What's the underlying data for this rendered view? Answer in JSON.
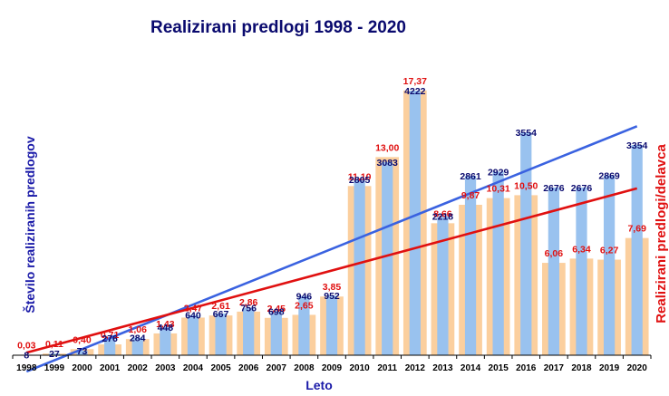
{
  "chart_data": {
    "type": "bar",
    "title": "Realizirani  predlogi 1998 -  2020",
    "xlabel": "Leto",
    "ylabel": "Število realiziranih predlogov",
    "y2label": "Realizirani predlogi/delavca",
    "categories": [
      "1998",
      "1999",
      "2000",
      "2001",
      "2002",
      "2003",
      "2004",
      "2005",
      "2006",
      "2007",
      "2008",
      "2009",
      "2010",
      "2011",
      "2012",
      "2013",
      "2014",
      "2015",
      "2016",
      "2017",
      "2018",
      "2019",
      "2020"
    ],
    "series": [
      {
        "axis": "left",
        "color": "#99c2ef",
        "values": [
          8,
          27,
          73,
          276,
          284,
          448,
          640,
          667,
          756,
          698,
          946,
          952,
          2805,
          3083,
          4222,
          2218,
          2861,
          2929,
          3554,
          2676,
          2676,
          2869,
          3354
        ],
        "labels": [
          "8",
          "27",
          "73",
          "276",
          "284",
          "448",
          "640",
          "667",
          "756",
          "698",
          "946",
          "952",
          "2805",
          "3083",
          "4222",
          "2218",
          "2861",
          "2929",
          "3554",
          "2676",
          "2676",
          "2869",
          "3354"
        ]
      },
      {
        "axis": "right",
        "color": "#fbcf9e",
        "values": [
          0.03,
          0.11,
          0.4,
          0.71,
          1.06,
          1.43,
          2.47,
          2.61,
          2.86,
          2.45,
          2.65,
          3.85,
          11.1,
          13.0,
          17.37,
          8.66,
          9.87,
          10.31,
          10.5,
          6.06,
          6.34,
          6.27,
          7.69
        ],
        "labels": [
          "0,03",
          "0,11",
          "0,40",
          "0,71",
          "1,06",
          "1,43",
          "2,47",
          "2,61",
          "2,86",
          "2,45",
          "2,65",
          "3,85",
          "11,10",
          "13,00",
          "17,37",
          "8,66",
          "9,87",
          "10,31",
          "10,50",
          "6,06",
          "6,34",
          "6,27",
          "7,69"
        ]
      }
    ],
    "trendlines": [
      {
        "series": "left",
        "color": "#3a62e0"
      },
      {
        "series": "right",
        "color": "#e01010"
      }
    ],
    "ylim": [
      0,
      4800
    ],
    "y2lim": [
      0,
      19.74
    ],
    "grid": false,
    "legend": "none"
  }
}
